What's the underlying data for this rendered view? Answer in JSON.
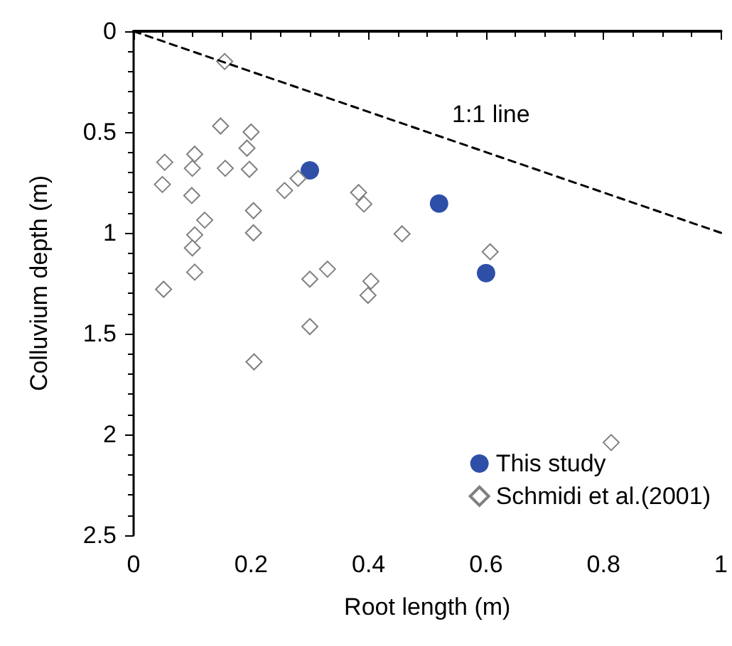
{
  "chart_data": {
    "type": "scatter",
    "xlabel": "Root length (m)",
    "ylabel": "Colluvium depth (m)",
    "xlim": [
      0,
      1
    ],
    "xticks": [
      0,
      0.2,
      0.4,
      0.6,
      0.8,
      1
    ],
    "ylim": [
      2.5,
      0
    ],
    "yticks": [
      0,
      0.5,
      1,
      1.5,
      2,
      2.5
    ],
    "grid": false,
    "legend": "bottom right",
    "annotations": [
      "1:1 line"
    ],
    "series": [
      {
        "name": "This study",
        "color": "#2e4fa8",
        "marker": "circle",
        "x": [
          0.3,
          0.52,
          0.6
        ],
        "values": [
          0.69,
          0.855,
          1.2
        ]
      },
      {
        "name": "Schmidi et al.(2001)",
        "color": "#808080",
        "marker": "diamond",
        "x": [
          0.155,
          0.148,
          0.2,
          0.193,
          0.053,
          0.104,
          0.1,
          0.156,
          0.197,
          0.049,
          0.28,
          0.257,
          0.099,
          0.383,
          0.392,
          0.204,
          0.121,
          0.204,
          0.457,
          0.104,
          0.1,
          0.104,
          0.33,
          0.3,
          0.404,
          0.399,
          0.051,
          0.3,
          0.205,
          0.607,
          0.813
        ],
        "values": [
          0.15,
          0.47,
          0.5,
          0.58,
          0.65,
          0.61,
          0.68,
          0.68,
          0.685,
          0.76,
          0.73,
          0.79,
          0.815,
          0.8,
          0.857,
          0.89,
          0.937,
          1.0,
          1.005,
          1.01,
          1.075,
          1.195,
          1.18,
          1.23,
          1.24,
          1.31,
          1.28,
          1.465,
          1.64,
          1.094,
          2.04
        ]
      },
      {
        "type": "line",
        "color": "#000000",
        "line_style": "dashed",
        "marker": "none",
        "x": [
          0,
          1
        ],
        "values": [
          0,
          1
        ]
      }
    ]
  }
}
